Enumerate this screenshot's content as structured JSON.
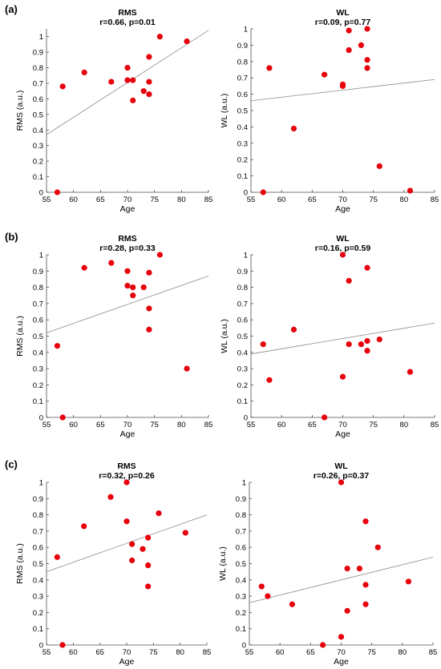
{
  "panel_labels": [
    "(a)",
    "(b)",
    "(c)"
  ],
  "colors": {
    "point": "#e8000b",
    "fit_line": "#8c8c8c",
    "axis": "#4d4d4d",
    "background": "#ffffff"
  },
  "chart_data": [
    {
      "type": "scatter",
      "panel": "(a)",
      "title": "RMS",
      "subtitle": "r=0.66, p=0.01",
      "xlabel": "Age",
      "ylabel": "RMS (a.u.)",
      "xlim": [
        55,
        85
      ],
      "ylim": [
        0,
        1.05
      ],
      "xticks": [
        55,
        60,
        65,
        70,
        75,
        80,
        85
      ],
      "yticks": [
        0,
        0.1,
        0.2,
        0.3,
        0.4,
        0.5,
        0.6,
        0.7,
        0.8,
        0.9,
        1
      ],
      "ytick_labels": [
        "0",
        "0.1",
        "0.2",
        "0.3",
        "0.4",
        "0.5",
        "0.6",
        "0.7",
        "0.8",
        "0.9",
        "1"
      ],
      "x": [
        57,
        58,
        62,
        67,
        70,
        70,
        71,
        71,
        73,
        74,
        74,
        74,
        76,
        81
      ],
      "y": [
        0,
        0.68,
        0.77,
        0.71,
        0.8,
        0.72,
        0.72,
        0.59,
        0.65,
        0.87,
        0.71,
        0.63,
        1.0,
        0.97
      ],
      "fit": {
        "x": [
          55,
          85
        ],
        "y": [
          0.37,
          1.04
        ]
      }
    },
    {
      "type": "scatter",
      "panel": "(a)",
      "title": "WL",
      "subtitle": "r=0.09, p=0.77",
      "xlabel": "Age",
      "ylabel": "WL (a.u.)",
      "xlim": [
        55,
        85
      ],
      "ylim": [
        0,
        1.0
      ],
      "xticks": [
        55,
        60,
        65,
        70,
        75,
        80,
        85
      ],
      "yticks": [
        0,
        0.1,
        0.2,
        0.3,
        0.4,
        0.5,
        0.6,
        0.7,
        0.8,
        0.9,
        1
      ],
      "ytick_labels": [
        "0",
        "0.1",
        "0.2",
        "0.3",
        "0.4",
        "0.5",
        "0.6",
        "0.7",
        "0.8",
        "0.9",
        "1"
      ],
      "x": [
        57,
        58,
        62,
        67,
        70,
        70,
        71,
        71,
        73,
        74,
        74,
        74,
        76,
        81
      ],
      "y": [
        0,
        0.76,
        0.39,
        0.72,
        0.66,
        0.65,
        0.99,
        0.87,
        0.9,
        1.0,
        0.81,
        0.76,
        0.16,
        0.01
      ],
      "fit": {
        "x": [
          55,
          85
        ],
        "y": [
          0.56,
          0.69
        ]
      }
    },
    {
      "type": "scatter",
      "panel": "(b)",
      "title": "RMS",
      "subtitle": "r=0.28, p=0.33",
      "xlabel": "Age",
      "ylabel": "RMS (a.u.)",
      "xlim": [
        55,
        85
      ],
      "ylim": [
        0,
        1.0
      ],
      "xticks": [
        55,
        60,
        65,
        70,
        75,
        80,
        85
      ],
      "yticks": [
        0,
        0.1,
        0.2,
        0.3,
        0.4,
        0.5,
        0.6,
        0.7,
        0.8,
        0.9,
        1
      ],
      "ytick_labels": [
        "0",
        "0.1",
        "0.2",
        "0.3",
        "0.4",
        "0.5",
        "0.6",
        "0.7",
        "0.8",
        "0.9",
        "1"
      ],
      "x": [
        57,
        58,
        62,
        67,
        70,
        70,
        71,
        71,
        73,
        74,
        74,
        74,
        76,
        81
      ],
      "y": [
        0.44,
        0,
        0.92,
        0.95,
        0.9,
        0.81,
        0.8,
        0.75,
        0.8,
        0.89,
        0.67,
        0.54,
        1.0,
        0.3
      ],
      "fit": {
        "x": [
          55,
          85
        ],
        "y": [
          0.52,
          0.87
        ]
      }
    },
    {
      "type": "scatter",
      "panel": "(b)",
      "title": "WL",
      "subtitle": "r=0.16, p=0.59",
      "xlabel": "Age",
      "ylabel": "WL (a.u.)",
      "xlim": [
        55,
        85
      ],
      "ylim": [
        0,
        1.0
      ],
      "xticks": [
        55,
        60,
        65,
        70,
        75,
        80,
        85
      ],
      "yticks": [
        0,
        0.1,
        0.2,
        0.3,
        0.4,
        0.5,
        0.6,
        0.7,
        0.8,
        0.9,
        1
      ],
      "ytick_labels": [
        "0",
        "0.1",
        "0.2",
        "0.3",
        "0.4",
        "0.5",
        "0.6",
        "0.7",
        "0.8",
        "0.9",
        "1"
      ],
      "x": [
        57,
        58,
        62,
        67,
        70,
        70,
        71,
        71,
        73,
        74,
        74,
        74,
        76,
        81
      ],
      "y": [
        0.45,
        0.23,
        0.54,
        0,
        1.0,
        0.25,
        0.84,
        0.45,
        0.45,
        0.92,
        0.47,
        0.41,
        0.48,
        0.28
      ],
      "fit": {
        "x": [
          55,
          85
        ],
        "y": [
          0.39,
          0.58
        ]
      }
    },
    {
      "type": "scatter",
      "panel": "(c)",
      "title": "RMS",
      "subtitle": "r=0.32, p=0.26",
      "xlabel": "Age",
      "ylabel": "RMS (a.u.)",
      "xlim": [
        55,
        85
      ],
      "ylim": [
        0,
        1.0
      ],
      "xticks": [
        55,
        60,
        65,
        70,
        75,
        80,
        85
      ],
      "yticks": [
        0,
        0.1,
        0.2,
        0.3,
        0.4,
        0.5,
        0.6,
        0.7,
        0.8,
        0.9,
        1
      ],
      "ytick_labels": [
        "0",
        "0.1",
        "0.2",
        "0.3",
        "0.4",
        "0.5",
        "0.6",
        "0.7",
        "0.8",
        "0.9",
        "1"
      ],
      "x": [
        57,
        58,
        62,
        67,
        70,
        70,
        71,
        71,
        73,
        74,
        74,
        74,
        76,
        81
      ],
      "y": [
        0.54,
        0,
        0.73,
        0.91,
        1.0,
        0.76,
        0.62,
        0.52,
        0.59,
        0.66,
        0.49,
        0.36,
        0.81,
        0.69
      ],
      "fit": {
        "x": [
          55,
          85
        ],
        "y": [
          0.45,
          0.8
        ]
      }
    },
    {
      "type": "scatter",
      "panel": "(c)",
      "title": "WL",
      "subtitle": "r=0.26, p=0.37",
      "xlabel": "Age",
      "ylabel": "WL (a.u.)",
      "xlim": [
        55,
        85
      ],
      "ylim": [
        0,
        1.0
      ],
      "xticks": [
        55,
        60,
        65,
        70,
        75,
        80,
        85
      ],
      "yticks": [
        0,
        0.1,
        0.2,
        0.3,
        0.4,
        0.5,
        0.6,
        0.7,
        0.8,
        0.9,
        1
      ],
      "ytick_labels": [
        "0",
        "0.1",
        "0.2",
        "0.3",
        "0.4",
        "0.5",
        "0.6",
        "0.7",
        "0.8",
        "0.9",
        "1"
      ],
      "x": [
        57,
        58,
        62,
        67,
        70,
        70,
        71,
        71,
        73,
        74,
        74,
        74,
        76,
        81
      ],
      "y": [
        0.36,
        0.3,
        0.25,
        0,
        1.0,
        0.05,
        0.47,
        0.21,
        0.47,
        0.76,
        0.37,
        0.25,
        0.6,
        0.39
      ],
      "fit": {
        "x": [
          55,
          85
        ],
        "y": [
          0.26,
          0.54
        ]
      }
    }
  ]
}
